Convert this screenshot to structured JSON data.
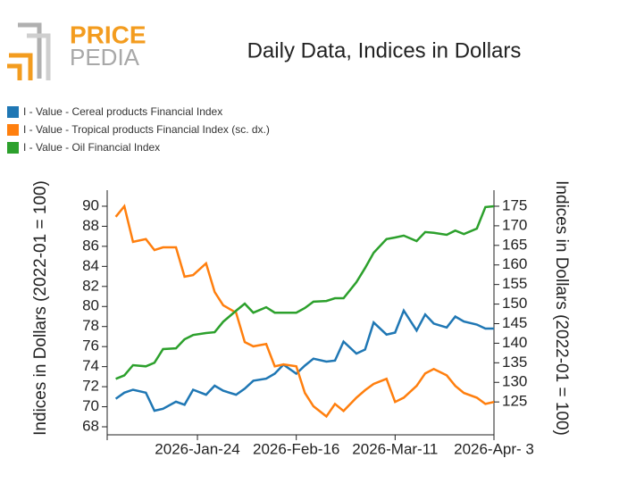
{
  "logo": {
    "top": "PRICE",
    "bottom": "PEDIA"
  },
  "chart_data": {
    "type": "line",
    "title": "Daily Data, Indices in Dollars",
    "ylabel": "Indices in Dollars (2022-01 = 100)",
    "y2label": "Indices in Dollars (2022-01 = 100)",
    "x": [
      "2026-01-05",
      "2026-01-07",
      "2026-01-09",
      "2026-01-12",
      "2026-01-14",
      "2026-01-16",
      "2026-01-19",
      "2026-01-21",
      "2026-01-23",
      "2026-01-26",
      "2026-01-28",
      "2026-01-30",
      "2026-02-02",
      "2026-02-04",
      "2026-02-06",
      "2026-02-09",
      "2026-02-11",
      "2026-02-13",
      "2026-02-16",
      "2026-02-18",
      "2026-02-20",
      "2026-02-23",
      "2026-02-25",
      "2026-02-27",
      "2026-03-02",
      "2026-03-04",
      "2026-03-06",
      "2026-03-09",
      "2026-03-11",
      "2026-03-13",
      "2026-03-16",
      "2026-03-18",
      "2026-03-20",
      "2026-03-23",
      "2026-03-25",
      "2026-03-27",
      "2026-03-30",
      "2026-04-01",
      "2026-04-03"
    ],
    "xlim": [
      "2026-01-03",
      "2026-04-03"
    ],
    "xticks": [
      {
        "value": "2026-01-24",
        "label": "2026-Jan-24"
      },
      {
        "value": "2026-02-16",
        "label": "2026-Feb-16"
      },
      {
        "value": "2026-03-11",
        "label": "2026-Mar-11"
      },
      {
        "value": "2026-04-03",
        "label": "2026-Apr- 3"
      }
    ],
    "ylim": [
      67.2,
      91.6
    ],
    "yticks": [
      68,
      70,
      72,
      74,
      76,
      78,
      80,
      82,
      84,
      86,
      88,
      90
    ],
    "y2lim": [
      116.6,
      179.1
    ],
    "y2ticks": [
      125,
      130,
      135,
      140,
      145,
      150,
      155,
      160,
      165,
      170,
      175
    ],
    "series": [
      {
        "name": "I - Value - Cereal products Financial Index",
        "color": "#1f77b4",
        "values": [
          70.8,
          71.4,
          71.7,
          71.4,
          69.6,
          69.8,
          70.5,
          70.2,
          71.7,
          71.2,
          72.1,
          71.6,
          71.2,
          71.8,
          72.6,
          72.8,
          73.3,
          74.2,
          73.3,
          74.1,
          74.8,
          74.5,
          74.6,
          76.5,
          75.3,
          75.7,
          78.4,
          77.2,
          77.4,
          79.6,
          77.6,
          79.2,
          78.3,
          77.9,
          79.0,
          78.5,
          78.2,
          77.8,
          77.8
        ]
      },
      {
        "name": "I - Value - Tropical products Financial Index (sc. dx.)",
        "color": "#ff7f0e",
        "axis": "y2",
        "values": [
          172.3,
          175.0,
          165.9,
          166.6,
          163.8,
          164.5,
          164.5,
          157.0,
          157.4,
          160.4,
          153.1,
          149.7,
          147.8,
          140.3,
          139.2,
          139.8,
          134.1,
          134.6,
          134.1,
          127.3,
          123.9,
          121.3,
          124.5,
          122.7,
          126.1,
          128.0,
          129.6,
          130.9,
          125.0,
          126.1,
          129.1,
          132.3,
          133.4,
          131.8,
          129.1,
          127.3,
          126.1,
          124.5,
          125.0
        ]
      },
      {
        "name": "I - Value - Oil Financial Index",
        "color": "#2ca02c",
        "axis": "y2",
        "values": [
          130.9,
          131.8,
          134.4,
          134.1,
          135.0,
          138.5,
          138.7,
          141.0,
          142.1,
          142.6,
          142.8,
          145.5,
          148.3,
          150.1,
          147.8,
          149.2,
          147.8,
          147.8,
          147.8,
          149.0,
          150.6,
          150.8,
          151.5,
          151.5,
          155.6,
          159.2,
          163.1,
          166.6,
          167.0,
          167.5,
          166.1,
          168.4,
          168.2,
          167.7,
          168.8,
          167.9,
          169.3,
          174.8,
          175.0
        ]
      }
    ]
  }
}
